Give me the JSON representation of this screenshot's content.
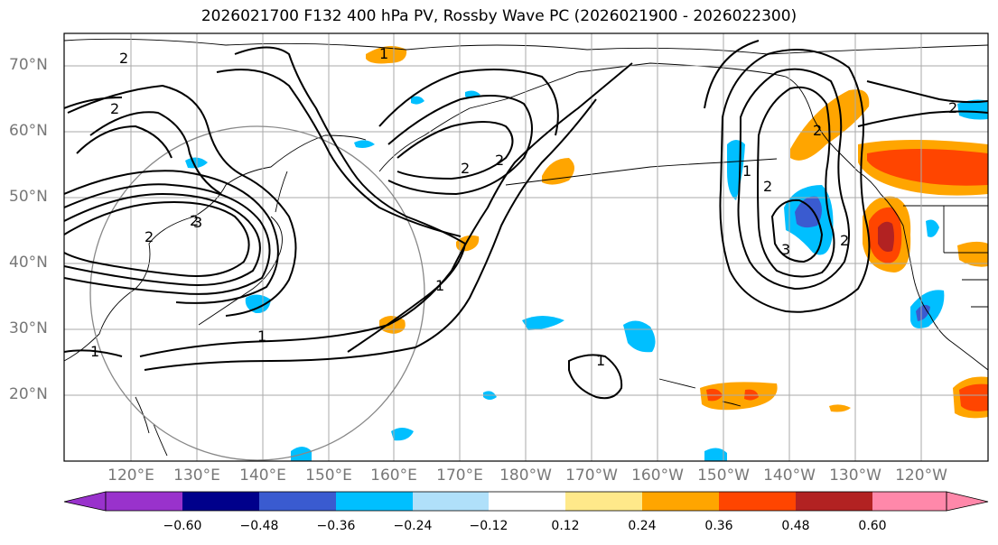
{
  "title": "2026021700 F132 400 hPa PV, Rossby Wave PC (2026021900 - 2026022300)",
  "lat_labels": [
    "70°N",
    "60°N",
    "50°N",
    "40°N",
    "30°N",
    "20°N"
  ],
  "lon_labels": [
    "120°E",
    "130°E",
    "140°E",
    "150°E",
    "160°E",
    "170°E",
    "180°W",
    "170°W",
    "160°W",
    "150°W",
    "140°W",
    "130°W",
    "120°W"
  ],
  "contour_labels": [
    "2",
    "2",
    "2",
    "2",
    "3",
    "2",
    "2",
    "1",
    "1",
    "1",
    "1",
    "1",
    "2",
    "2",
    "3",
    "2",
    "2",
    "1"
  ],
  "colorbar": {
    "ticks": [
      "−0.60",
      "−0.48",
      "−0.36",
      "−0.24",
      "−0.12",
      "0.12",
      "0.24",
      "0.36",
      "0.48",
      "0.60"
    ],
    "colors": [
      "#9932cc",
      "#00008b",
      "#3a5bd0",
      "#00bfff",
      "#b0e0fa",
      "#ffffff",
      "#ffe98a",
      "#ffa500",
      "#ff4500",
      "#b22222",
      "#ff88aa"
    ]
  }
}
